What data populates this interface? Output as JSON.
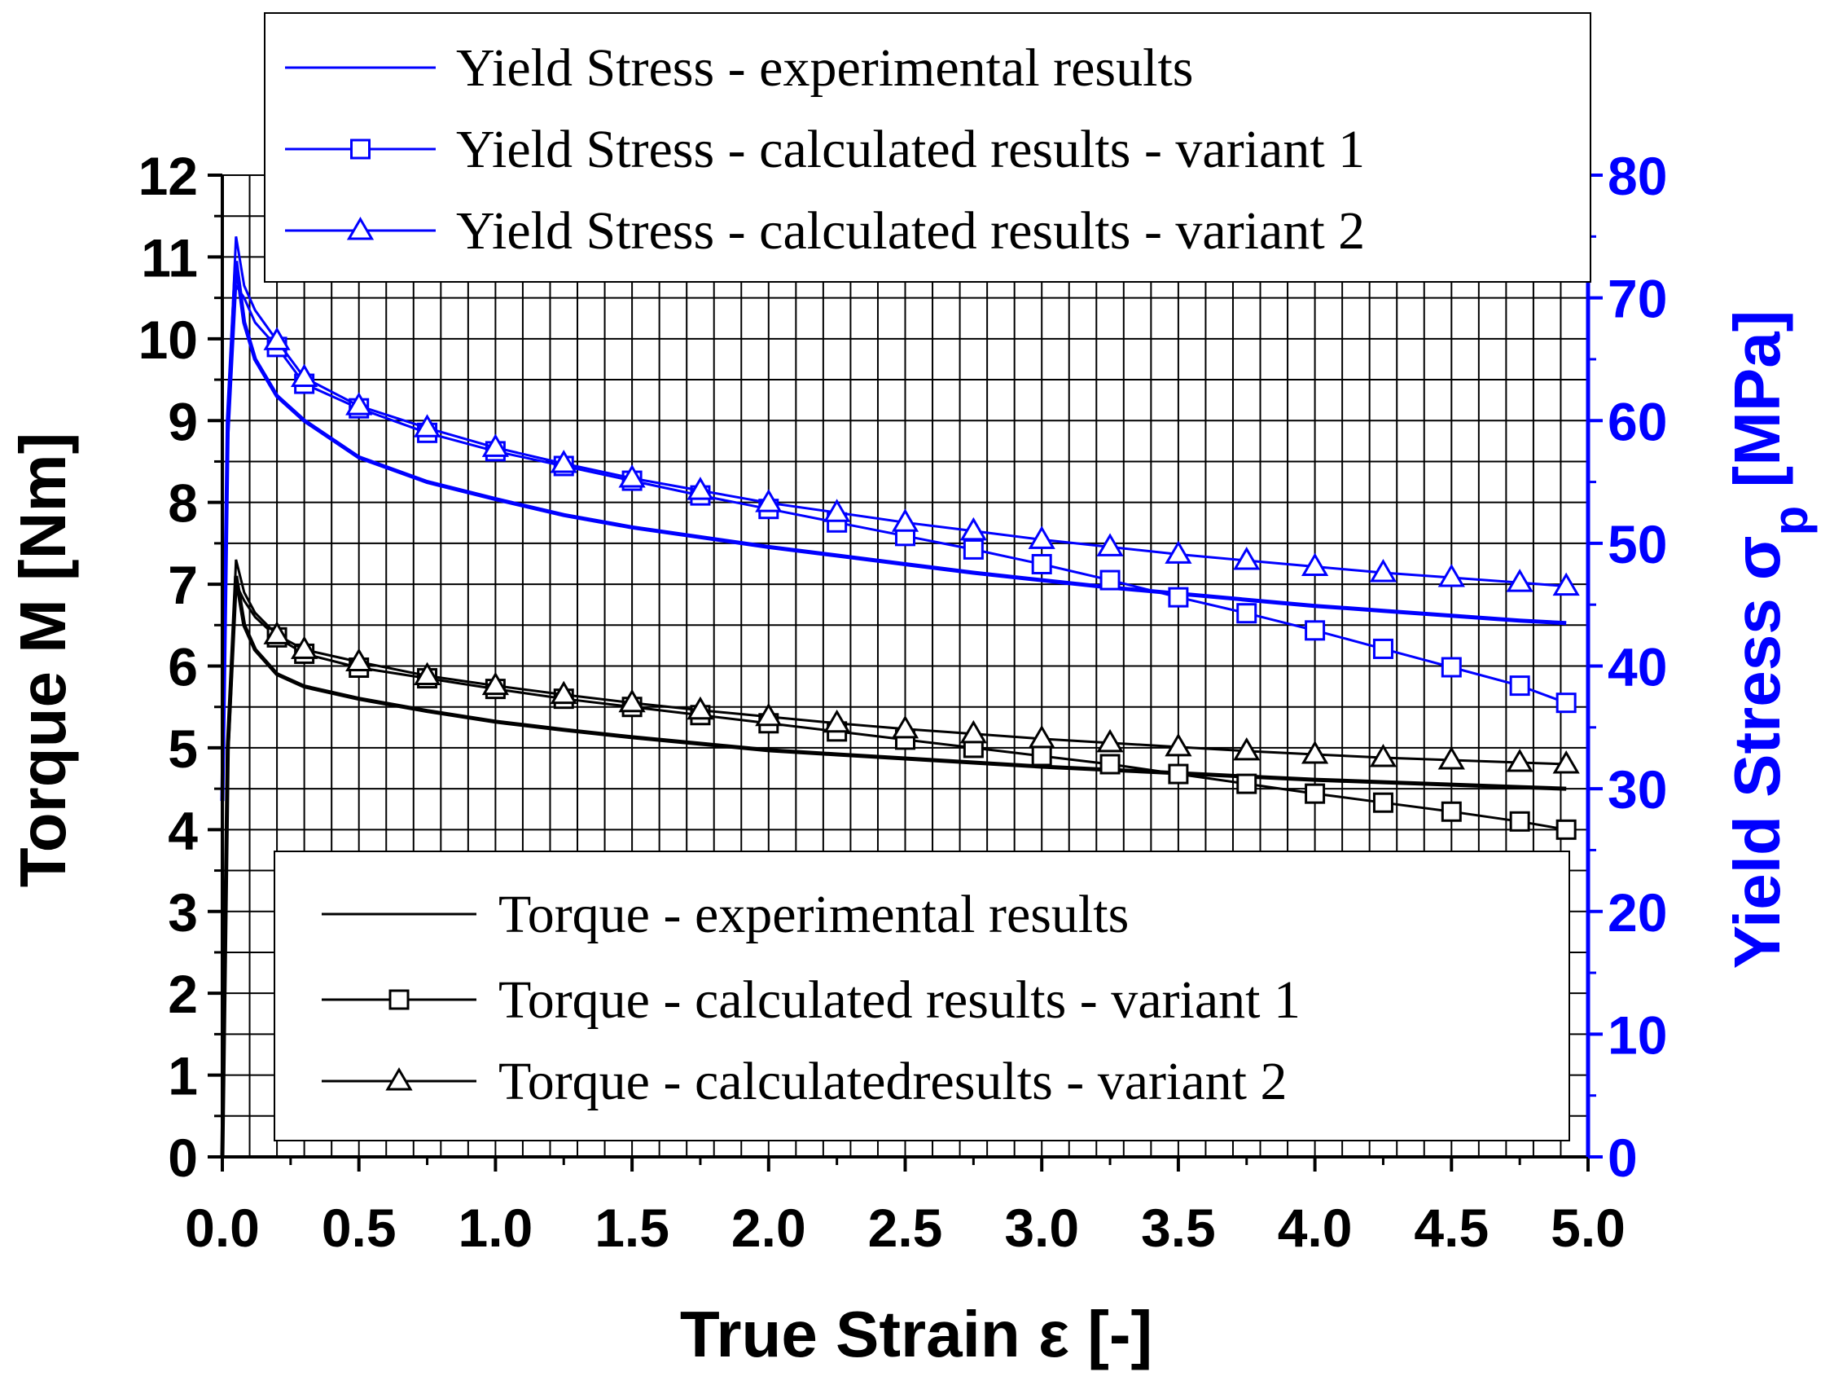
{
  "chart_data": {
    "type": "line",
    "x": [
      0.0,
      0.02,
      0.05,
      0.08,
      0.12,
      0.2,
      0.3,
      0.5,
      0.75,
      1.0,
      1.25,
      1.5,
      1.75,
      2.0,
      2.25,
      2.5,
      2.75,
      3.0,
      3.25,
      3.5,
      3.75,
      4.0,
      4.25,
      4.5,
      4.75,
      4.92
    ],
    "xlabel": "True Strain ε [-]",
    "xlim": [
      0,
      5
    ],
    "xticks": [
      "0.0",
      "0.5",
      "1.0",
      "1.5",
      "2.0",
      "2.5",
      "3.0",
      "3.5",
      "4.0",
      "4.5",
      "5.0"
    ],
    "y_left": {
      "label": "Torque M [Nm]",
      "lim": [
        0,
        12
      ],
      "ticks": [
        "0",
        "1",
        "2",
        "3",
        "4",
        "5",
        "6",
        "7",
        "8",
        "9",
        "10",
        "11",
        "12"
      ]
    },
    "y_right": {
      "label": "Yield Stress σ",
      "label_subscript": "p",
      "label_unit": " [MPa]",
      "lim": [
        0,
        80
      ],
      "ticks": [
        "0",
        "10",
        "20",
        "30",
        "40",
        "50",
        "60",
        "70",
        "80"
      ],
      "color": "#0000ff"
    },
    "series": [
      {
        "name": "Torque - experimental results",
        "axis": "left",
        "color": "#000000",
        "marker": "none",
        "x": [
          0.0,
          0.02,
          0.05,
          0.08,
          0.12,
          0.2,
          0.3,
          0.5,
          0.75,
          1.0,
          1.25,
          1.5,
          1.75,
          2.0,
          2.25,
          2.5,
          2.75,
          3.0,
          3.25,
          3.5,
          3.75,
          4.0,
          4.25,
          4.5,
          4.75,
          4.92
        ],
        "values": [
          0.0,
          5.0,
          7.1,
          6.5,
          6.2,
          5.9,
          5.75,
          5.6,
          5.45,
          5.32,
          5.22,
          5.13,
          5.05,
          4.97,
          4.92,
          4.87,
          4.82,
          4.77,
          4.73,
          4.69,
          4.65,
          4.61,
          4.58,
          4.55,
          4.52,
          4.5
        ]
      },
      {
        "name": "Torque - calculated results - variant 1",
        "axis": "left",
        "color": "#000000",
        "marker": "square",
        "x": [
          0.0,
          0.02,
          0.05,
          0.08,
          0.12,
          0.2,
          0.3,
          0.5,
          0.75,
          1.0,
          1.25,
          1.5,
          1.75,
          2.0,
          2.25,
          2.5,
          2.75,
          3.0,
          3.25,
          3.5,
          3.75,
          4.0,
          4.25,
          4.5,
          4.75,
          4.92
        ],
        "values": [
          0.0,
          4.8,
          7.0,
          6.8,
          6.6,
          6.35,
          6.15,
          5.98,
          5.85,
          5.72,
          5.6,
          5.5,
          5.4,
          5.3,
          5.2,
          5.1,
          5.0,
          4.9,
          4.8,
          4.68,
          4.56,
          4.44,
          4.33,
          4.22,
          4.1,
          4.0
        ]
      },
      {
        "name": "Torque - calculatedresults - variant 2",
        "axis": "left",
        "color": "#000000",
        "marker": "triangle",
        "x": [
          0.0,
          0.02,
          0.05,
          0.08,
          0.12,
          0.2,
          0.3,
          0.5,
          0.75,
          1.0,
          1.25,
          1.5,
          1.75,
          2.0,
          2.25,
          2.5,
          2.75,
          3.0,
          3.25,
          3.5,
          3.75,
          4.0,
          4.25,
          4.5,
          4.75,
          4.92
        ],
        "values": [
          0.0,
          4.9,
          7.3,
          6.9,
          6.65,
          6.38,
          6.2,
          6.05,
          5.88,
          5.76,
          5.65,
          5.55,
          5.46,
          5.38,
          5.3,
          5.23,
          5.17,
          5.11,
          5.06,
          5.01,
          4.96,
          4.92,
          4.88,
          4.85,
          4.82,
          4.8
        ]
      },
      {
        "name": "Yield Stress - experimental results",
        "axis": "right",
        "color": "#0000ff",
        "marker": "none",
        "x": [
          0.0,
          0.02,
          0.05,
          0.08,
          0.12,
          0.2,
          0.3,
          0.5,
          0.75,
          1.0,
          1.25,
          1.5,
          1.75,
          2.0,
          2.25,
          2.5,
          2.75,
          3.0,
          3.25,
          3.5,
          3.75,
          4.0,
          4.25,
          4.5,
          4.75,
          4.92
        ],
        "values": [
          29,
          60,
          73,
          68,
          65,
          62,
          60,
          57,
          55,
          53.6,
          52.3,
          51.3,
          50.5,
          49.7,
          49.0,
          48.3,
          47.6,
          47.0,
          46.4,
          45.9,
          45.4,
          44.9,
          44.5,
          44.1,
          43.7,
          43.5
        ]
      },
      {
        "name": "Yield Stress - calculated results - variant 1",
        "axis": "right",
        "color": "#0000ff",
        "marker": "square",
        "x": [
          0.0,
          0.02,
          0.05,
          0.08,
          0.12,
          0.2,
          0.3,
          0.5,
          0.75,
          1.0,
          1.25,
          1.5,
          1.75,
          2.0,
          2.25,
          2.5,
          2.75,
          3.0,
          3.25,
          3.5,
          3.75,
          4.0,
          4.25,
          4.5,
          4.75,
          4.92
        ],
        "values": [
          29,
          58,
          71,
          70,
          68,
          66,
          63,
          61,
          59,
          57.5,
          56.3,
          55.1,
          53.9,
          52.8,
          51.7,
          50.6,
          49.5,
          48.3,
          47.0,
          45.6,
          44.3,
          42.9,
          41.4,
          39.9,
          38.4,
          37.0
        ]
      },
      {
        "name": "Yield Stress - calculated results - variant 2",
        "axis": "right",
        "color": "#0000ff",
        "marker": "triangle",
        "x": [
          0.0,
          0.02,
          0.05,
          0.08,
          0.12,
          0.2,
          0.3,
          0.5,
          0.75,
          1.0,
          1.25,
          1.5,
          1.75,
          2.0,
          2.25,
          2.5,
          2.75,
          3.0,
          3.25,
          3.5,
          3.75,
          4.0,
          4.25,
          4.5,
          4.75,
          4.92
        ],
        "values": [
          29,
          60,
          75,
          71,
          69,
          66.5,
          63.5,
          61.2,
          59.4,
          57.8,
          56.5,
          55.3,
          54.3,
          53.3,
          52.5,
          51.7,
          51.0,
          50.3,
          49.7,
          49.1,
          48.6,
          48.1,
          47.6,
          47.2,
          46.8,
          46.5
        ]
      }
    ],
    "legend_top": {
      "position": "top",
      "entries": [
        "Yield Stress - experimental results",
        "Yield Stress - calculated results - variant 1",
        "Yield Stress - calculated results - variant 2"
      ]
    },
    "legend_bottom": {
      "position": "bottom-center",
      "entries": [
        "Torque - experimental results",
        "Torque - calculated results - variant 1",
        "Torque - calculatedresults - variant 2"
      ]
    },
    "grid": true
  }
}
